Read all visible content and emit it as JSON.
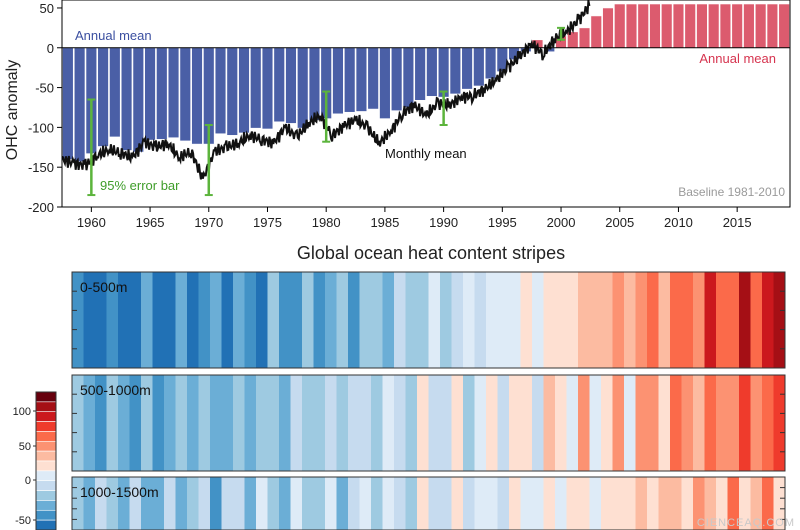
{
  "chart_data": [
    {
      "type": "bar",
      "ylabel": "OHC anomaly",
      "ylim": [
        -200,
        60
      ],
      "xlim": [
        1958,
        2020
      ],
      "yticks": [
        50,
        0,
        -50,
        -100,
        -150,
        -200
      ],
      "xticks": [
        1960,
        1965,
        1970,
        1975,
        1980,
        1985,
        1990,
        1995,
        2000,
        2005,
        2010,
        2015
      ],
      "annotations": {
        "annual_mean_left": "Annual mean",
        "annual_mean_right": "Annual mean",
        "monthly_mean": "Monthly mean",
        "error_bar": "95% error bar",
        "baseline": "Baseline 1981-2010"
      },
      "colors": {
        "negative": "#4a5fa6",
        "positive": "#dc5b6e",
        "line": "#111111",
        "error": "#5cb43c"
      },
      "series": [
        {
          "name": "Annual mean",
          "x": [
            1958,
            1959,
            1960,
            1961,
            1962,
            1963,
            1964,
            1965,
            1966,
            1967,
            1968,
            1969,
            1970,
            1971,
            1972,
            1973,
            1974,
            1975,
            1976,
            1977,
            1978,
            1979,
            1980,
            1981,
            1982,
            1983,
            1984,
            1985,
            1986,
            1987,
            1988,
            1989,
            1990,
            1991,
            1992,
            1993,
            1994,
            1995,
            1996,
            1997,
            1998,
            1999,
            2000,
            2001,
            2002,
            2003,
            2004,
            2005,
            2006,
            2007,
            2008,
            2009,
            2010,
            2011,
            2012,
            2013,
            2014,
            2015,
            2016,
            2017,
            2018,
            2019
          ],
          "values": [
            -140,
            -143,
            -133,
            -124,
            -112,
            -129,
            -131,
            -116,
            -115,
            -113,
            -117,
            -121,
            -121,
            -108,
            -110,
            -107,
            -101,
            -102,
            -93,
            -95,
            -101,
            -91,
            -89,
            -83,
            -81,
            -80,
            -77,
            -89,
            -79,
            -75,
            -66,
            -61,
            -62,
            -58,
            -52,
            -48,
            -39,
            -30,
            -15,
            -5,
            10,
            -5,
            15,
            20,
            25,
            40,
            50,
            55,
            55,
            55,
            55,
            55,
            55,
            55,
            55,
            55,
            55,
            55,
            55,
            55,
            55,
            55
          ]
        },
        {
          "name": "Monthly mean",
          "x": [
            1958,
            1959,
            1960,
            1961,
            1962,
            1963,
            1964,
            1965,
            1966,
            1967,
            1968,
            1969,
            1970,
            1971,
            1972,
            1973,
            1974,
            1975,
            1976,
            1977,
            1978,
            1979,
            1980,
            1981,
            1982,
            1983,
            1984,
            1985,
            1986,
            1987,
            1988,
            1989,
            1990,
            1991,
            1992,
            1993,
            1994,
            1995,
            1996,
            1997,
            1998,
            1999,
            2000,
            2001,
            2002,
            2003
          ],
          "values": [
            -140,
            -145,
            -148,
            -135,
            -128,
            -132,
            -138,
            -118,
            -125,
            -120,
            -138,
            -130,
            -165,
            -130,
            -125,
            -120,
            -110,
            -115,
            -120,
            -100,
            -112,
            -95,
            -85,
            -110,
            -98,
            -90,
            -100,
            -120,
            -105,
            -82,
            -72,
            -85,
            -70,
            -72,
            -62,
            -60,
            -52,
            -40,
            -25,
            -10,
            5,
            -8,
            12,
            20,
            35,
            55
          ]
        }
      ],
      "error_bars": [
        {
          "x": 1960,
          "low": -185,
          "high": -65
        },
        {
          "x": 1970,
          "low": -185,
          "high": -97
        },
        {
          "x": 1980,
          "low": -118,
          "high": -55
        },
        {
          "x": 1990,
          "low": -97,
          "high": -55
        },
        {
          "x": 2000,
          "low": 10,
          "high": 25
        }
      ]
    },
    {
      "type": "heatmap",
      "title": "Global ocean heat content stripes",
      "x_range": [
        1958,
        2020
      ],
      "bands": [
        {
          "name": "0-500m",
          "start_anomaly": -1.8,
          "trend": 3.6
        },
        {
          "name": "500-1000m",
          "start_anomaly": -1.2,
          "trend": 2.4
        },
        {
          "name": "1000-1500m",
          "start_anomaly": -0.9,
          "trend": 1.6
        }
      ],
      "colorbar": {
        "ticks": [
          100,
          50,
          0,
          -50
        ],
        "colors": [
          "#67000d",
          "#a50f15",
          "#cb181d",
          "#ef3b2c",
          "#fb6a4a",
          "#fc9272",
          "#fcbba1",
          "#fee0d2",
          "#deebf7",
          "#c6dbef",
          "#9ecae1",
          "#6baed6",
          "#4292c6",
          "#2171b5"
        ]
      }
    }
  ],
  "watermark": "CIENCEAQ.COM"
}
